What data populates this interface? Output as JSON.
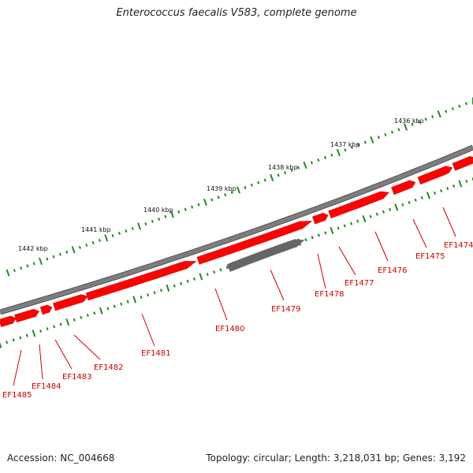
{
  "title": "Enterococcus faecalis V583, complete genome",
  "footer": {
    "accession": "Accession: NC_004668",
    "summary": "Topology: circular; Length: 3,218,031 bp; Genes: 3,192"
  },
  "colors": {
    "backbone": "#7d7d7d",
    "gene": "#ff0000",
    "gene_alt": "#666666",
    "tick": "#1f8a1f",
    "label": "#cc0000"
  },
  "scale_labels": [
    "1436 kbp",
    "1437 kbp",
    "1438 kbp",
    "1439 kbp",
    "1440 kbp",
    "1441 kbp",
    "1442 kbp"
  ],
  "genes": [
    "EF1474",
    "EF1475",
    "EF1476",
    "EF1477",
    "EF1478",
    "EF1479",
    "EF1480",
    "EF1481",
    "EF1482",
    "EF1483",
    "EF1484",
    "EF1485"
  ]
}
